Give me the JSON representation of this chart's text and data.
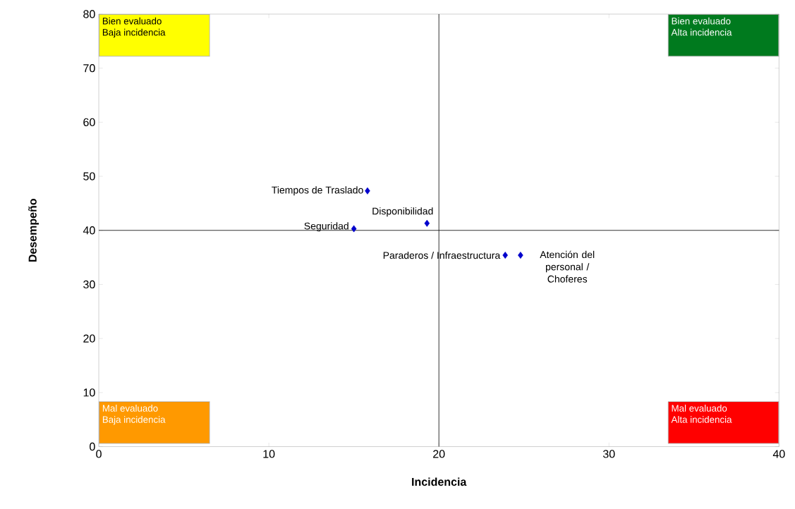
{
  "chart_data": {
    "type": "scatter",
    "xlabel": "Incidencia",
    "ylabel": "Desempeño",
    "x": [
      15.8,
      15.0,
      19.3,
      23.9,
      24.8
    ],
    "series": [
      {
        "color": "#0000cc",
        "values": [
          47.3,
          40.3,
          41.3,
          35.4,
          35.4
        ]
      }
    ],
    "marker": "diamond",
    "xlim": [
      0,
      40
    ],
    "ylim": [
      0,
      80
    ],
    "xticks": [
      0,
      10,
      20,
      30,
      40
    ],
    "yticks": [
      0,
      10,
      20,
      30,
      40,
      50,
      60,
      70,
      80
    ],
    "ref_lines": [
      {
        "axis": "x",
        "value": 20,
        "color": "#000000"
      },
      {
        "axis": "y",
        "value": 40,
        "color": "#000000"
      }
    ],
    "annotations": [
      "Bien evaluado Baja incidencia",
      "Bien evaluado Alta incidencia",
      "Mal evaluado Baja incidencia",
      "Mal evaluado Alta incidencia",
      {
        "text": "Tiempos de Traslado",
        "x": 15.8,
        "y": 47.3
      },
      {
        "text": "Seguridad",
        "x": 15.0,
        "y": 40.3
      },
      {
        "text": "Disponibilidad",
        "x": 19.3,
        "y": 41.3
      },
      {
        "text": "Paraderos / Infraestructura",
        "x": 23.9,
        "y": 35.4
      },
      {
        "text": "Atención del personal / Choferes",
        "x": 24.8,
        "y": 35.4
      }
    ],
    "grid": false
  }
}
